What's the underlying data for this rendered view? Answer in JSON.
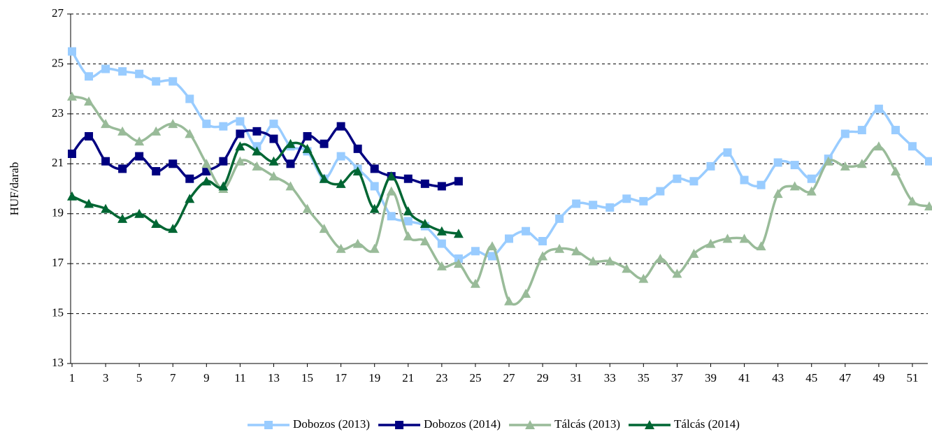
{
  "chart_data": {
    "type": "line",
    "y_label": "HUF/darab",
    "x": [
      1,
      2,
      3,
      4,
      5,
      6,
      7,
      8,
      9,
      10,
      11,
      12,
      13,
      14,
      15,
      16,
      17,
      18,
      19,
      20,
      21,
      22,
      23,
      24,
      25,
      26,
      27,
      28,
      29,
      30,
      31,
      32,
      33,
      34,
      35,
      36,
      37,
      38,
      39,
      40,
      41,
      42,
      43,
      44,
      45,
      46,
      47,
      48,
      49,
      50,
      51,
      52
    ],
    "xlim": [
      1,
      52
    ],
    "xticks": [
      1,
      3,
      5,
      7,
      9,
      11,
      13,
      15,
      17,
      19,
      21,
      23,
      25,
      27,
      29,
      31,
      33,
      35,
      37,
      39,
      41,
      43,
      45,
      47,
      49,
      51
    ],
    "ylim": [
      13,
      27
    ],
    "yticks": [
      13,
      15,
      17,
      19,
      21,
      23,
      25,
      27
    ],
    "grid": true,
    "smooth": true,
    "legend": "bottom",
    "series": [
      {
        "name": "Dobozos (2013)",
        "color": "#99ccff",
        "marker": "square",
        "values": [
          25.5,
          24.5,
          24.8,
          24.7,
          24.6,
          24.3,
          24.3,
          23.6,
          22.6,
          22.5,
          22.7,
          21.7,
          22.6,
          21.7,
          21.5,
          20.4,
          21.3,
          20.8,
          20.1,
          18.9,
          18.7,
          18.5,
          17.8,
          17.2,
          17.5,
          17.3,
          18.0,
          18.3,
          17.9,
          18.8,
          19.4,
          19.35,
          19.25,
          19.6,
          19.5,
          19.9,
          20.4,
          20.3,
          20.9,
          21.45,
          20.35,
          20.15,
          21.05,
          20.95,
          20.4,
          21.2,
          22.2,
          22.35,
          23.2,
          22.35,
          21.7,
          21.1
        ]
      },
      {
        "name": "Dobozos (2014)",
        "color": "#000080",
        "marker": "square",
        "values": [
          21.4,
          22.1,
          21.1,
          20.8,
          21.3,
          20.7,
          21.0,
          20.4,
          20.7,
          21.1,
          22.2,
          22.3,
          22.0,
          21.0,
          22.1,
          21.8,
          22.5,
          21.6,
          20.8,
          20.5,
          20.4,
          20.2,
          20.1,
          20.3,
          null,
          null,
          null,
          null,
          null,
          null,
          null,
          null,
          null,
          null,
          null,
          null,
          null,
          null,
          null,
          null,
          null,
          null,
          null,
          null,
          null,
          null,
          null,
          null,
          null,
          null,
          null,
          null
        ]
      },
      {
        "name": "Tálcás (2013)",
        "color": "#99bb99",
        "marker": "triangle",
        "values": [
          23.7,
          23.5,
          22.6,
          22.3,
          21.9,
          22.3,
          22.6,
          22.2,
          21.0,
          20.0,
          21.1,
          20.9,
          20.5,
          20.1,
          19.2,
          18.4,
          17.6,
          17.8,
          17.6,
          19.9,
          18.1,
          17.9,
          16.9,
          17.0,
          16.2,
          17.7,
          15.5,
          15.8,
          17.3,
          17.6,
          17.5,
          17.1,
          17.1,
          16.8,
          16.4,
          17.2,
          16.6,
          17.4,
          17.8,
          18.0,
          18.0,
          17.7,
          19.8,
          20.1,
          19.9,
          21.1,
          20.9,
          21.0,
          21.7,
          20.7,
          19.5,
          19.3
        ]
      },
      {
        "name": "Tálcás (2014)",
        "color": "#006633",
        "marker": "triangle",
        "values": [
          19.7,
          19.4,
          19.2,
          18.8,
          19.0,
          18.6,
          18.4,
          19.6,
          20.3,
          20.1,
          21.7,
          21.5,
          21.1,
          21.8,
          21.6,
          20.4,
          20.2,
          20.7,
          19.2,
          20.5,
          19.1,
          18.6,
          18.3,
          18.2,
          null,
          null,
          null,
          null,
          null,
          null,
          null,
          null,
          null,
          null,
          null,
          null,
          null,
          null,
          null,
          null,
          null,
          null,
          null,
          null,
          null,
          null,
          null,
          null,
          null,
          null,
          null,
          null
        ]
      }
    ]
  }
}
